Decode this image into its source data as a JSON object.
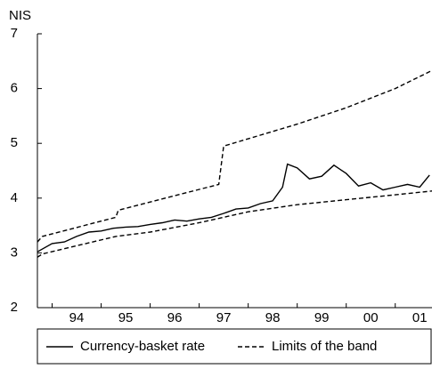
{
  "chart_data": {
    "type": "line",
    "ylabel": "NIS",
    "xlim": [
      1993.7,
      2001.75
    ],
    "ylim": [
      2,
      7
    ],
    "yticks": [
      2,
      3,
      4,
      5,
      6,
      7
    ],
    "xticks": [
      {
        "value": 1994.5,
        "label": "94"
      },
      {
        "value": 1995.5,
        "label": "95"
      },
      {
        "value": 1996.5,
        "label": "96"
      },
      {
        "value": 1997.5,
        "label": "97"
      },
      {
        "value": 1998.5,
        "label": "98"
      },
      {
        "value": 1999.5,
        "label": "99"
      },
      {
        "value": 2000.5,
        "label": "00"
      },
      {
        "value": 2001.5,
        "label": "01"
      }
    ],
    "series": [
      {
        "name": "Currency-basket rate",
        "color": "#000000",
        "dash": "none",
        "lines": [
          {
            "x": [
              1993.7,
              1994.0,
              1994.25,
              1994.5,
              1994.75,
              1995.0,
              1995.25,
              1995.5,
              1995.75,
              1996.0,
              1996.25,
              1996.5,
              1996.75,
              1997.0,
              1997.25,
              1997.5,
              1997.75,
              1998.0,
              1998.25,
              1998.5,
              1998.7,
              1998.8,
              1999.0,
              1999.25,
              1999.5,
              1999.75,
              2000.0,
              2000.25,
              2000.5,
              2000.75,
              2001.0,
              2001.25,
              2001.5,
              2001.7
            ],
            "y": [
              3.02,
              3.17,
              3.2,
              3.3,
              3.38,
              3.4,
              3.45,
              3.47,
              3.48,
              3.52,
              3.55,
              3.6,
              3.58,
              3.62,
              3.65,
              3.72,
              3.8,
              3.82,
              3.9,
              3.95,
              4.2,
              4.62,
              4.55,
              4.35,
              4.4,
              4.6,
              4.45,
              4.22,
              4.28,
              4.15,
              4.2,
              4.25,
              4.2,
              4.42
            ]
          }
        ]
      },
      {
        "name": "Limits of the band",
        "color": "#000000",
        "dash": "5,3",
        "lines": [
          {
            "x": [
              1993.7,
              1993.8,
              1995.3,
              1995.35,
              1997.4,
              1997.5,
              1999.0,
              2000.0,
              2001.0,
              2001.75
            ],
            "y": [
              3.2,
              3.3,
              3.65,
              3.78,
              4.25,
              4.95,
              5.35,
              5.65,
              6.0,
              6.33
            ]
          },
          {
            "x": [
              1993.7,
              1993.8,
              1995.3,
              1996.0,
              1997.0,
              1998.0,
              1999.0,
              2000.0,
              2001.0,
              2001.75
            ],
            "y": [
              2.92,
              2.98,
              3.3,
              3.38,
              3.55,
              3.75,
              3.88,
              3.97,
              4.06,
              4.13
            ]
          }
        ]
      }
    ]
  }
}
